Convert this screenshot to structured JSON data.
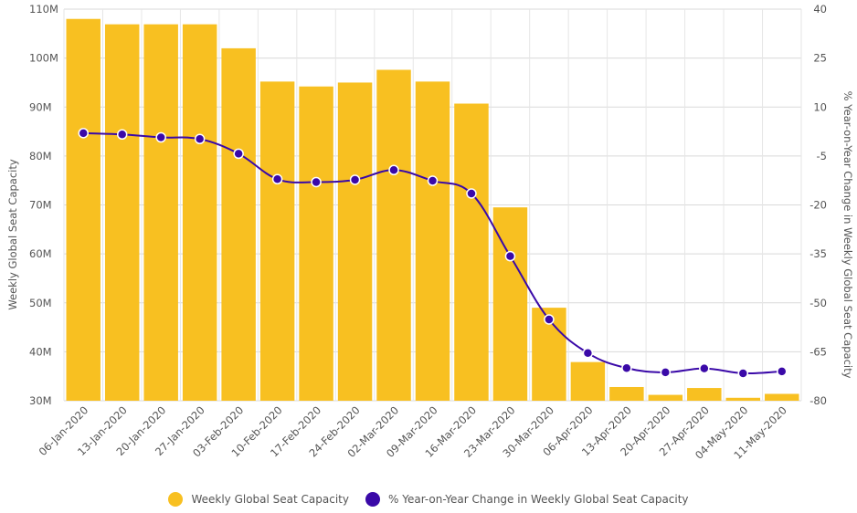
{
  "chart_data": {
    "type": "bar",
    "categories": [
      "06-Jan-2020",
      "13-Jan-2020",
      "20-Jan-2020",
      "27-Jan-2020",
      "03-Feb-2020",
      "10-Feb-2020",
      "17-Feb-2020",
      "24-Feb-2020",
      "02-Mar-2020",
      "09-Mar-2020",
      "16-Mar-2020",
      "23-Mar-2020",
      "30-Mar-2020",
      "06-Apr-2020",
      "13-Apr-2020",
      "20-Apr-2020",
      "27-Apr-2020",
      "04-May-2020",
      "11-May-2020"
    ],
    "series": [
      {
        "name": "Weekly Global Seat Capacity",
        "type": "bar",
        "axis": "left",
        "color": "#f8c021",
        "values": [
          108.0,
          106.9,
          106.9,
          106.9,
          102.0,
          95.2,
          94.2,
          95.0,
          97.6,
          95.2,
          90.7,
          69.5,
          49.0,
          37.9,
          32.8,
          31.2,
          32.6,
          30.6,
          31.4
        ]
      },
      {
        "name": "% Year-on-Year Change in Weekly Global Seat Capacity",
        "type": "line",
        "axis": "right",
        "color": "#3a09a8",
        "values": [
          2.0,
          1.6,
          0.7,
          0.2,
          -4.3,
          -12.1,
          -13.0,
          -12.3,
          -9.3,
          -12.6,
          -16.5,
          -35.7,
          -55.1,
          -65.4,
          -70.0,
          -71.3,
          -70.1,
          -71.6,
          -71.0
        ]
      }
    ],
    "ylabel_left": "Weekly Global Seat Capacity",
    "ylabel_right": "% Year-on-Year Change in Weekly Global Seat Capacity",
    "ylim_left": [
      30,
      110
    ],
    "yticks_left": [
      "30M",
      "40M",
      "50M",
      "60M",
      "70M",
      "80M",
      "90M",
      "100M",
      "110M"
    ],
    "ylim_right": [
      -80,
      40
    ],
    "yticks_right": [
      "-80",
      "-65",
      "-50",
      "-35",
      "-20",
      "-5",
      "10",
      "25",
      "40"
    ],
    "grid": true,
    "legend_position": "bottom-center"
  }
}
